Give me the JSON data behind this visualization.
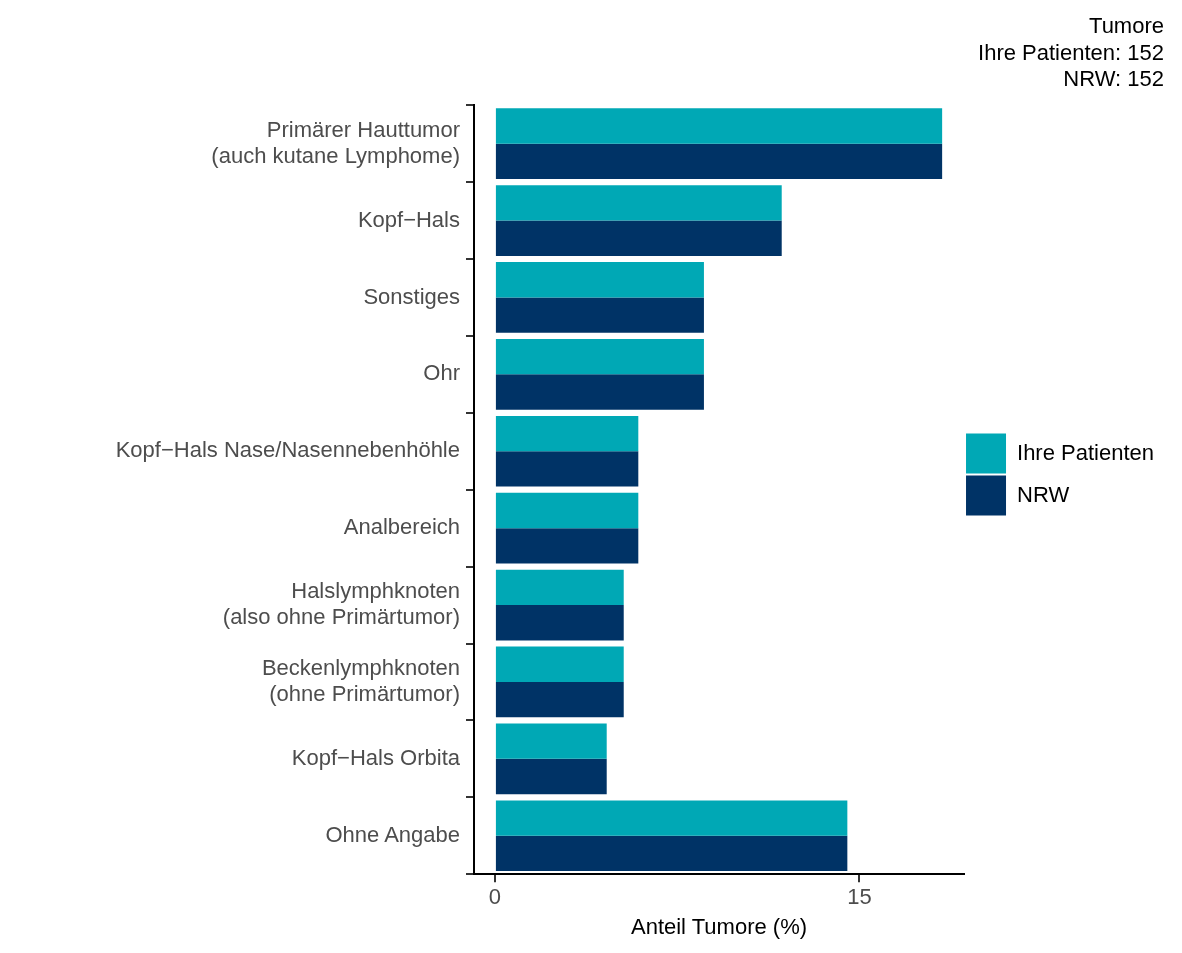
{
  "chart_data": {
    "type": "bar",
    "orientation": "horizontal",
    "title": "Tumore",
    "subtitle": "Ihre Patienten: 152\nNRW: 152",
    "xlabel": "Anteil Tumore (%)",
    "categories": [
      "Primärer Hauttumor\n(auch kutane Lymphome)",
      "Kopf−Hals",
      "Sonstiges",
      "Ohr",
      "Kopf−Hals Nase/Nasennebenhöhle",
      "Analbereich",
      "Halslymphknoten\n(also ohne Primärtumor)",
      "Beckenlymphknoten\n(ohne Primärtumor)",
      "Kopf−Hals Orbita",
      "Ohne Angabe"
    ],
    "series": [
      {
        "name": "Ihre Patienten",
        "color": "#00a8b5",
        "values": [
          18.4,
          11.8,
          8.6,
          8.6,
          5.9,
          5.9,
          5.3,
          5.3,
          4.6,
          14.5
        ]
      },
      {
        "name": "NRW",
        "color": "#003366",
        "values": [
          18.4,
          11.8,
          8.6,
          8.6,
          5.9,
          5.9,
          5.3,
          5.3,
          4.6,
          14.5
        ]
      }
    ],
    "xlim": [
      -0.86,
      19.3
    ],
    "xticks": [
      0,
      15
    ],
    "grid": false,
    "legend": "right"
  }
}
